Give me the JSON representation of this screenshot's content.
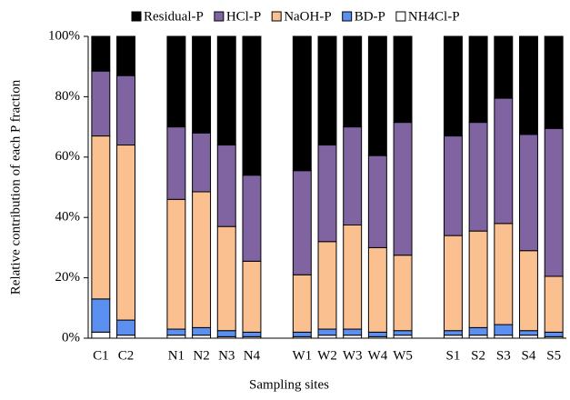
{
  "chart_data": {
    "type": "stacked_bar",
    "x_label": "Sampling sites",
    "y_label": "Relative contribution of each P fraction",
    "categories": [
      "C1",
      "C2",
      null,
      "N1",
      "N2",
      "N3",
      "N4",
      null,
      "W1",
      "W2",
      "W3",
      "W4",
      "W5",
      null,
      "S1",
      "S2",
      "S3",
      "S4",
      "S5"
    ],
    "series": [
      {
        "name": "NH4Cl-P",
        "color": "#ffffff",
        "values": [
          2,
          1,
          null,
          1,
          1,
          0.5,
          0.5,
          null,
          0.5,
          1,
          1,
          0.5,
          1,
          null,
          1,
          1,
          1,
          1,
          0.5
        ]
      },
      {
        "name": "BD-P",
        "color": "#5b8ff0",
        "values": [
          11,
          5,
          null,
          2,
          2.5,
          2,
          1.5,
          null,
          1.5,
          2,
          2,
          1.5,
          1.5,
          null,
          1.5,
          2.5,
          3.5,
          1.5,
          1.5
        ]
      },
      {
        "name": "NaOH-P",
        "color": "#fac090",
        "values": [
          54,
          58,
          null,
          43,
          45,
          34.5,
          23.5,
          null,
          19,
          29,
          34.5,
          28,
          25,
          null,
          31.5,
          32,
          33.5,
          26.5,
          18.5
        ]
      },
      {
        "name": "HCl-P",
        "color": "#8064a2",
        "values": [
          21.5,
          23,
          null,
          24,
          19.5,
          27,
          28.5,
          null,
          34.5,
          32,
          32.5,
          30.5,
          44,
          null,
          33,
          36,
          41.5,
          38.5,
          49
        ]
      },
      {
        "name": "Residual-P",
        "color": "#000000",
        "values": [
          11.5,
          13,
          null,
          30,
          32,
          36,
          46,
          null,
          44.5,
          36,
          30,
          39.5,
          28.5,
          null,
          33,
          28.5,
          20.5,
          32.5,
          30.5
        ]
      }
    ],
    "ylim": [
      0,
      100
    ],
    "yticks": [
      {
        "value": 0,
        "label": "0%"
      },
      {
        "value": 20,
        "label": "20%"
      },
      {
        "value": 40,
        "label": "40%"
      },
      {
        "value": 60,
        "label": "60%"
      },
      {
        "value": 80,
        "label": "80%"
      },
      {
        "value": 100,
        "label": "100%"
      }
    ]
  }
}
